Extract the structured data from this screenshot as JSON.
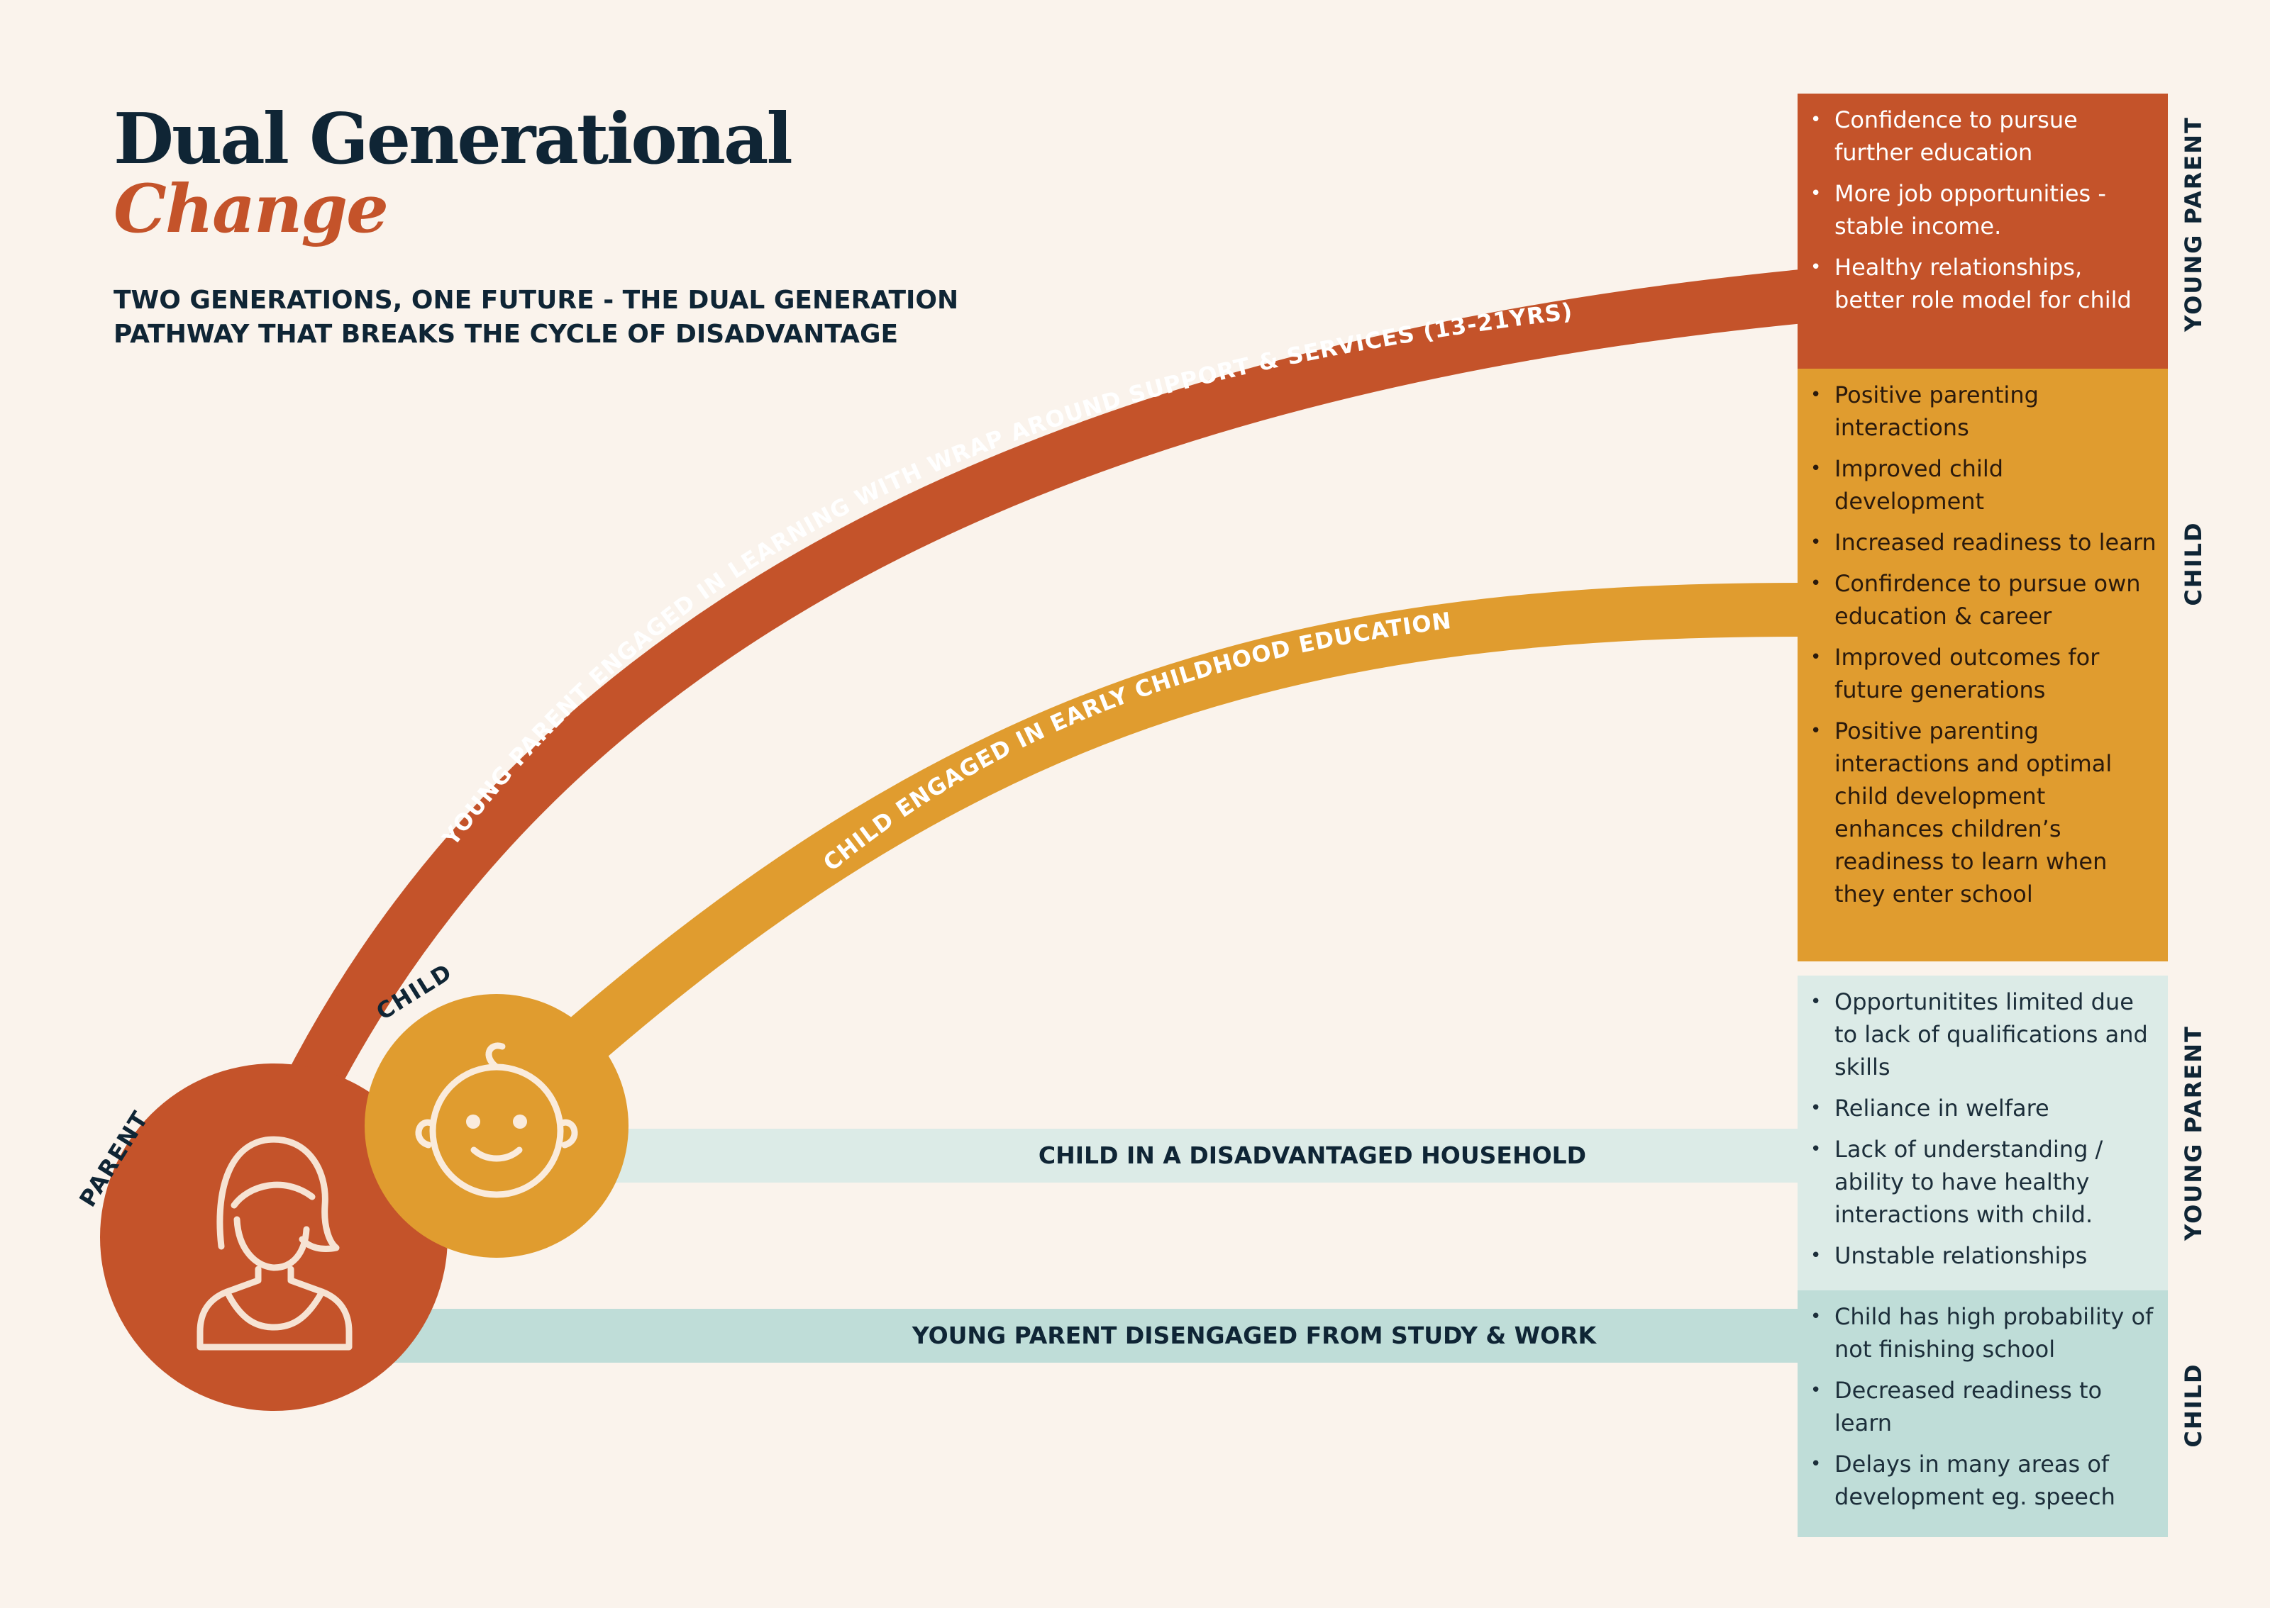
{
  "header": {
    "title": "Dual Generational",
    "title_accent": "Change",
    "subtitle_line1": "TWO GENERATIONS, ONE FUTURE - THE DUAL GENERATION",
    "subtitle_line2": "PATHWAY THAT BREAKS THE CYCLE OF DISADVANTAGE"
  },
  "colors": {
    "background": "#FAF3EC",
    "parent": "#C4532A",
    "child": "#E09C2F",
    "negative_light": "#DCEBE7",
    "negative_dark": "#BFDDD8",
    "navy": "#0F2535"
  },
  "nodes": {
    "parent_label": "PARENT",
    "child_label": "CHILD",
    "parent_icon": "woman-icon",
    "child_icon": "baby-face-icon"
  },
  "paths": {
    "parent_engaged": "YOUNG PARENT ENGAGED IN LEARNING WITH WRAP AROUND SUPPORT & SERVICES (13-21YRS)",
    "child_engaged": "CHILD ENGAGED IN EARLY CHILDHOOD EDUCATION",
    "child_disadvantaged": "CHILD IN A DISADVANTAGED HOUSEHOLD",
    "parent_disengaged": "YOUNG PARENT DISENGAGED FROM STUDY & WORK"
  },
  "outcomes": {
    "young_parent_positive": {
      "label": "YOUNG PARENT",
      "items": [
        "Confidence to pursue further education",
        "More job opportunities - stable income.",
        "Healthy relationships, better role model for child"
      ]
    },
    "child_positive": {
      "label": "CHILD",
      "items": [
        "Positive parenting interactions",
        "Improved child development",
        "Increased readiness to learn",
        "Confirdence to pursue own education & career",
        "Improved outcomes for future generations",
        "Positive parenting interactions and optimal child development enhances children’s readiness to learn when they enter school"
      ]
    },
    "young_parent_negative": {
      "label": "YOUNG PARENT",
      "items": [
        "Opportunitites limited due to lack of qualifications and skills",
        "Reliance in welfare",
        "Lack of understanding / ability to have healthy interactions with child.",
        "Unstable relationships"
      ]
    },
    "child_negative": {
      "label": "CHILD",
      "items": [
        "Child has high probability of not finishing school",
        "Decreased readiness to learn",
        "Delays in many areas of development eg. speech"
      ]
    }
  }
}
